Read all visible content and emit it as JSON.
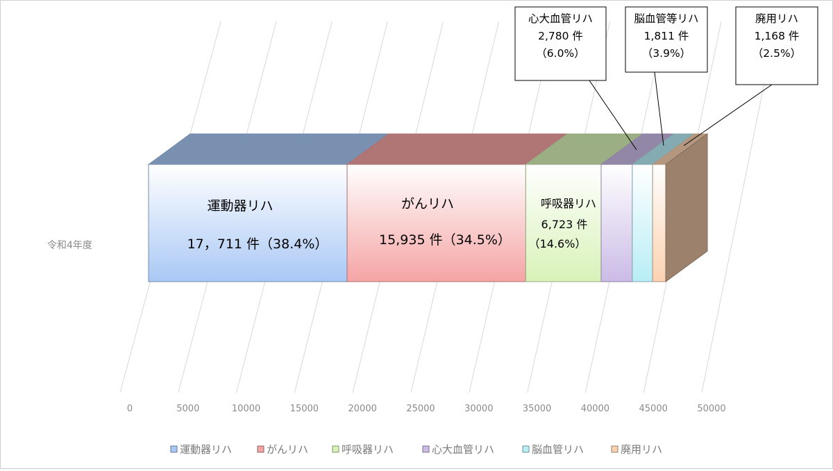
{
  "chart_data": {
    "type": "bar",
    "orientation": "horizontal-stacked-3d",
    "categories": [
      "令和4年度"
    ],
    "series": [
      {
        "name": "運動器リハ",
        "values": [
          17711
        ],
        "color": "#a9c8f5",
        "label_lines": [
          "運動器リハ",
          "17，711 件（38.4%）"
        ]
      },
      {
        "name": "がんリハ",
        "values": [
          15935
        ],
        "color": "#f5a4a4",
        "label_lines": [
          "がんリハ",
          "15,935 件（34.5%）"
        ]
      },
      {
        "name": "呼吸器リハ",
        "values": [
          6723
        ],
        "color": "#d8f2b8",
        "label_lines": [
          "呼吸器リハ",
          "6,723 件",
          "（14.6%）"
        ]
      },
      {
        "name": "心大血管リハ",
        "values": [
          2780
        ],
        "color": "#cbbbe6",
        "label_lines": [
          "心大血管リハ",
          "2,780 件",
          "（6.0%）"
        ]
      },
      {
        "name": "脳血管リハ",
        "values": [
          1811
        ],
        "color": "#b8eef6",
        "label_lines": [
          "脳血管等リハ",
          "1,811 件",
          "（3.9%）"
        ]
      },
      {
        "name": "廃用リハ",
        "values": [
          1168
        ],
        "color": "#fbd2b0",
        "label_lines": [
          "廃用リハ",
          "1,168 件",
          "（2.5%）"
        ]
      }
    ],
    "x_ticks": [
      "0",
      "5000",
      "10000",
      "15000",
      "20000",
      "25000",
      "30000",
      "35000",
      "40000",
      "45000",
      "50000"
    ],
    "xlim": [
      0,
      50000
    ],
    "grid": true,
    "legend_position": "bottom"
  }
}
